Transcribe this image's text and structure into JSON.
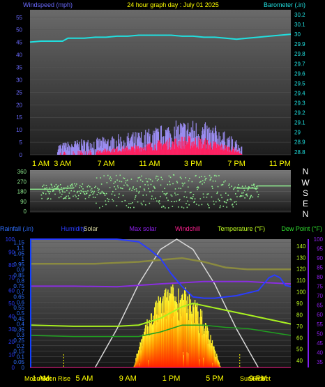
{
  "header": {
    "left": "Windspeed (mph)",
    "center": "24 hour graph day : July 01 2025",
    "right": "Barometer (.in)"
  },
  "colors": {
    "background": "#000000",
    "wind_label": "#6a6aff",
    "title": "#ffff00",
    "barometer": "#20e0e0",
    "gust": "#9a8cf0",
    "avg_wind": "#ff2060",
    "direction": "#90ee90",
    "humidity": "#2a3cff",
    "solar": "#d8d8a0",
    "max_solar": "#9020f0",
    "windchill": "#ff2090",
    "temperature": "#c0ff20",
    "dewpoint": "#30e030",
    "rainfall": "#2f6fff",
    "moon": "#ffff00"
  },
  "top_chart": {
    "type": "area",
    "time_labels": [
      "1 AM",
      "3 AM",
      "7 AM",
      "11 AM",
      "3 PM",
      "7 PM",
      "11 PM"
    ],
    "time_label_hours": [
      1,
      3,
      7,
      11,
      15,
      19,
      23
    ],
    "wind_ticks": [
      "0",
      "5",
      "10",
      "15",
      "20",
      "25",
      "30",
      "35",
      "40",
      "45",
      "50",
      "55"
    ],
    "baro_ticks": [
      "28.8",
      "28.9",
      "29",
      "29.1",
      "29.2",
      "29.3",
      "29.4",
      "29.5",
      "29.6",
      "29.7",
      "29.8",
      "29.9",
      "30",
      "30.1",
      "30.2"
    ],
    "wind_range": [
      0,
      58
    ],
    "baro_range": [
      28.77,
      30.25
    ],
    "barometer_series": {
      "x": [
        0,
        1,
        2,
        3,
        3.5,
        4,
        5,
        6,
        7,
        8,
        9,
        10,
        11,
        12,
        13,
        14,
        15,
        16,
        17,
        18,
        19,
        20,
        21,
        22,
        23,
        24
      ],
      "y": [
        29.92,
        29.93,
        29.93,
        29.93,
        29.96,
        29.96,
        29.96,
        29.97,
        29.97,
        29.98,
        29.98,
        29.99,
        29.99,
        29.99,
        29.99,
        29.98,
        29.98,
        29.97,
        29.97,
        29.96,
        29.95,
        29.96,
        29.97,
        29.98,
        29.99,
        30.0
      ]
    },
    "gust_profile": {
      "x": [
        2.5,
        4,
        6,
        8,
        10,
        12,
        13,
        14,
        15,
        16,
        17,
        18,
        19,
        19.5
      ],
      "y": [
        3,
        4,
        4.5,
        5.5,
        6.5,
        8,
        9,
        9.5,
        9.5,
        9,
        8,
        6,
        4,
        2
      ]
    },
    "avg_profile": {
      "x": [
        2.5,
        6,
        10,
        12,
        14,
        15,
        16,
        17,
        18,
        19,
        19.5
      ],
      "y": [
        1,
        1.5,
        3,
        4.5,
        5.5,
        5.5,
        5,
        4,
        3,
        2,
        0
      ]
    }
  },
  "direction_chart": {
    "type": "scatter",
    "ticks": [
      "0",
      "90",
      "180",
      "270",
      "360"
    ],
    "compass": [
      "N",
      "W",
      "S",
      "E",
      "N"
    ],
    "range": [
      0,
      360
    ],
    "night_segments": [
      {
        "x0": 0,
        "x1": 3,
        "y": 200
      },
      {
        "x0": 3,
        "x1": 4,
        "y": 210
      },
      {
        "x0": 19,
        "x1": 21,
        "y": 210
      },
      {
        "x0": 21,
        "x1": 24,
        "y": 230
      }
    ]
  },
  "bottom_chart": {
    "type": "line",
    "legend": [
      "Rainfall (.in)",
      "Humidity",
      "Solar",
      "Max solar",
      "Windchill",
      "Temperature (°F)",
      "Dew Point (°F)"
    ],
    "rain_ticks": [
      "0",
      "0.05",
      "0.1",
      "0.15",
      "0.2",
      "0.25",
      "0.3",
      "0.35",
      "0.4",
      "0.45",
      "0.5",
      "0.55",
      "0.6",
      "0.65",
      "0.7",
      "0.75",
      "0.8",
      "0.85",
      "0.9",
      "0.95",
      "1",
      "1.05",
      "1.1",
      "1.15"
    ],
    "humidity_ticks": [
      "0",
      "10",
      "20",
      "30",
      "40",
      "50",
      "60",
      "70",
      "80",
      "90",
      "100"
    ],
    "temp_ticks": [
      "40",
      "50",
      "60",
      "70",
      "80",
      "90",
      "100",
      "110",
      "120",
      "130",
      "140"
    ],
    "dew_ticks": [
      "35",
      "40",
      "45",
      "50",
      "55",
      "60",
      "65",
      "70",
      "75",
      "80",
      "85",
      "90",
      "95",
      "100"
    ],
    "time_labels": [
      "1 AM",
      "5 AM",
      "9 AM",
      "1 PM",
      "5 PM",
      "9 PM"
    ],
    "time_label_hours": [
      1,
      5,
      9,
      13,
      17,
      21
    ],
    "rain_range": [
      0,
      1.18
    ],
    "temp_range": [
      34,
      146
    ],
    "dew_range": [
      32,
      100
    ],
    "humidity": {
      "x": [
        0,
        4,
        8,
        10,
        11,
        12,
        13,
        14,
        15,
        16,
        17,
        18,
        19,
        20,
        21,
        21.5,
        22,
        22.5,
        23,
        23.5,
        24
      ],
      "y": [
        100,
        100,
        100,
        98,
        92,
        85,
        73,
        63,
        55,
        54,
        54,
        55,
        56,
        58,
        60,
        65,
        70,
        72,
        70,
        64,
        63
      ]
    },
    "max_solar": {
      "x": [
        0,
        4,
        8,
        12,
        16,
        20,
        24
      ],
      "y": [
        105,
        105,
        104.5,
        107,
        109,
        109,
        107
      ]
    },
    "solar": {
      "x": [
        0,
        6,
        10,
        12,
        14,
        16,
        18,
        20,
        24
      ],
      "y": [
        87,
        87,
        88,
        89,
        90,
        88,
        85,
        84,
        84
      ]
    },
    "temperature": {
      "x": [
        0,
        4,
        8,
        10,
        12,
        14,
        15,
        16,
        18,
        20,
        22,
        24
      ],
      "y": [
        71,
        70,
        70,
        71,
        77,
        87,
        90,
        88,
        84,
        80,
        76,
        72
      ]
    },
    "dew_point": {
      "x": [
        0,
        4,
        8,
        10,
        12,
        14,
        16,
        18,
        20,
        22,
        24
      ],
      "y": [
        62,
        61,
        61,
        61,
        65,
        71,
        71,
        69,
        68,
        65,
        62
      ]
    },
    "solar_bars": {
      "x": [
        9.5,
        10,
        11,
        12,
        12.5,
        13,
        14,
        15,
        16,
        17,
        17.5
      ],
      "y": [
        0,
        18,
        40,
        54,
        58,
        60,
        59,
        52,
        38,
        14,
        0
      ]
    },
    "max_solar_curve": {
      "x": [
        6,
        8,
        10,
        12,
        13.5,
        15,
        17,
        19,
        21
      ],
      "y": [
        0,
        30,
        65,
        92,
        100,
        92,
        65,
        30,
        0
      ]
    },
    "footer": {
      "moon_set": "Moon Set",
      "moon_rise": "Moon Rise",
      "sun_rise": "Sun Rise",
      "sun_set": "Sun Set"
    }
  }
}
